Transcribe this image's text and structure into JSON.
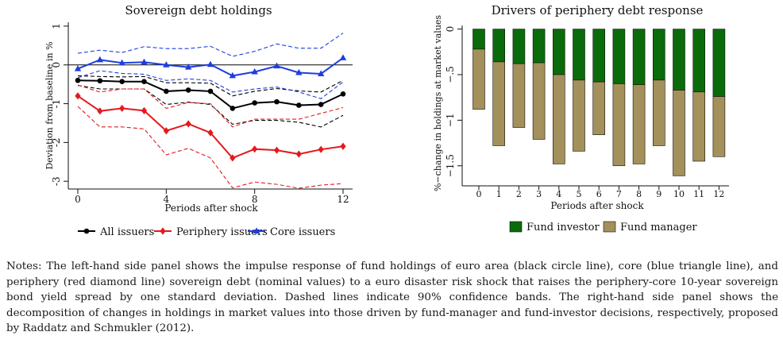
{
  "chart_data": [
    {
      "type": "line",
      "title": "Sovereign debt holdings",
      "xlabel": "Periods after shock",
      "ylabel": "Deviation from baseline in %",
      "x": [
        0,
        1,
        2,
        3,
        4,
        5,
        6,
        7,
        8,
        9,
        10,
        11,
        12
      ],
      "xticks": [
        0,
        4,
        8,
        12
      ],
      "yticks": [
        1,
        0,
        -1,
        -2,
        -3
      ],
      "ylim": [
        -3.2,
        1.1
      ],
      "xlim": [
        0,
        12
      ],
      "zero_line": true,
      "legend_position": "bottom",
      "series": [
        {
          "name": "All issuers",
          "color": "#000000",
          "marker": "circle",
          "values": [
            -0.4,
            -0.41,
            -0.43,
            -0.43,
            -0.68,
            -0.65,
            -0.68,
            -1.12,
            -0.98,
            -0.95,
            -1.04,
            -1.02,
            -0.75
          ],
          "upper": [
            -0.28,
            -0.3,
            -0.31,
            -0.3,
            -0.46,
            -0.46,
            -0.47,
            -0.8,
            -0.68,
            -0.61,
            -0.67,
            -0.7,
            -0.4
          ],
          "lower": [
            -0.53,
            -0.62,
            -0.62,
            -0.62,
            -1.02,
            -0.96,
            -1.02,
            -1.53,
            -1.43,
            -1.43,
            -1.48,
            -1.6,
            -1.3
          ]
        },
        {
          "name": "Periphery issuers",
          "color": "#e41a1c",
          "marker": "diamond",
          "values": [
            -0.8,
            -1.19,
            -1.12,
            -1.18,
            -1.7,
            -1.52,
            -1.75,
            -2.4,
            -2.17,
            -2.2,
            -2.3,
            -2.18,
            -2.1
          ],
          "upper": [
            -0.52,
            -0.7,
            -0.62,
            -0.62,
            -1.12,
            -0.97,
            -1.0,
            -1.6,
            -1.4,
            -1.4,
            -1.4,
            -1.25,
            -1.1
          ],
          "lower": [
            -1.07,
            -1.6,
            -1.6,
            -1.65,
            -2.32,
            -2.15,
            -2.4,
            -3.17,
            -3.02,
            -3.08,
            -3.18,
            -3.1,
            -3.06
          ]
        },
        {
          "name": "Core issuers",
          "color": "#1f3de0",
          "marker": "triangle",
          "values": [
            -0.1,
            0.13,
            0.05,
            0.07,
            0.0,
            -0.06,
            0.01,
            -0.28,
            -0.18,
            -0.03,
            -0.2,
            -0.23,
            0.18
          ],
          "upper": [
            0.3,
            0.38,
            0.32,
            0.47,
            0.42,
            0.42,
            0.48,
            0.22,
            0.35,
            0.54,
            0.43,
            0.43,
            0.82
          ],
          "lower": [
            -0.33,
            -0.15,
            -0.22,
            -0.24,
            -0.4,
            -0.36,
            -0.4,
            -0.7,
            -0.62,
            -0.57,
            -0.7,
            -0.87,
            -0.44
          ]
        }
      ]
    },
    {
      "type": "bar",
      "stacked": true,
      "title": "Drivers of periphery debt response",
      "xlabel": "Periods after shock",
      "ylabel": "%−change in holdings at market values",
      "categories": [
        "0",
        "1",
        "2",
        "3",
        "4",
        "5",
        "6",
        "7",
        "8",
        "9",
        "10",
        "11",
        "12"
      ],
      "yticks": [
        0,
        -0.5,
        -1,
        -1.5
      ],
      "ytick_labels": [
        "0",
        "−.5",
        "−1",
        "−1.5"
      ],
      "ylim": [
        -1.72,
        0.04
      ],
      "legend_position": "bottom",
      "series": [
        {
          "name": "Fund investor",
          "color": "#0a6b0a",
          "values": [
            -0.22,
            -0.36,
            -0.38,
            -0.37,
            -0.5,
            -0.56,
            -0.58,
            -0.6,
            -0.61,
            -0.56,
            -0.67,
            -0.69,
            -0.74
          ]
        },
        {
          "name": "Fund manager",
          "color": "#a3905a",
          "values": [
            -0.66,
            -0.92,
            -0.7,
            -0.84,
            -0.98,
            -0.78,
            -0.58,
            -0.9,
            -0.87,
            -0.72,
            -0.94,
            -0.76,
            -0.66
          ]
        }
      ]
    }
  ],
  "notes": "Notes: The left-hand side panel shows the impulse response of fund holdings of euro area (black circle line), core (blue triangle line), and periphery (red diamond line) sovereign debt (nominal values) to a euro disaster risk shock that raises the periphery-core 10-year sovereign bond yield spread by one standard deviation. Dashed lines indicate 90% confidence bands. The right-hand side panel shows the decomposition of changes in holdings in market values into those driven by fund-manager and fund-investor decisions, respectively, proposed by Raddatz and Schmukler (2012)."
}
